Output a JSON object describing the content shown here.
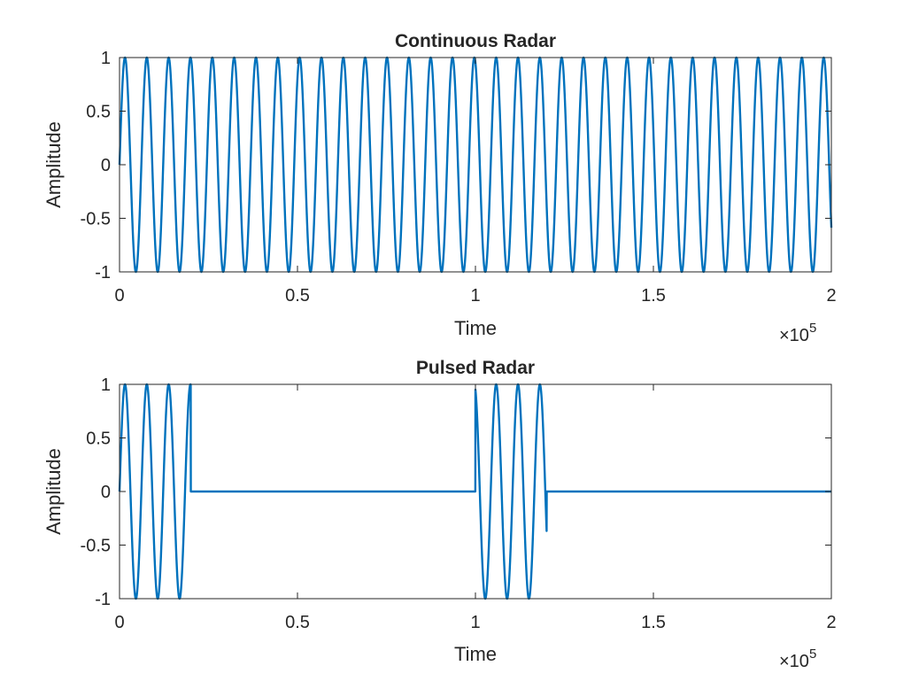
{
  "chart_data": [
    {
      "type": "line",
      "title": "Continuous Radar",
      "xlabel": "Time",
      "ylabel": "Amplitude",
      "x_exponent": {
        "base": "×10",
        "power": "5"
      },
      "xlim": [
        0,
        2
      ],
      "ylim": [
        -1,
        1
      ],
      "x_ticks": [
        "0",
        "0.5",
        "1",
        "1.5",
        "2"
      ],
      "y_ticks": [
        "1",
        "0.5",
        "0",
        "-0.5",
        "-1"
      ],
      "grid": false,
      "series": [
        {
          "color": "#0072BD",
          "waveform": "sine",
          "cycles_per_x_unit": 16.3,
          "segments": [
            [
              0,
              2
            ]
          ]
        }
      ]
    },
    {
      "type": "line",
      "title": "Pulsed Radar",
      "xlabel": "Time",
      "ylabel": "Amplitude",
      "x_exponent": {
        "base": "×10",
        "power": "5"
      },
      "xlim": [
        0,
        2
      ],
      "ylim": [
        -1,
        1
      ],
      "x_ticks": [
        "0",
        "0.5",
        "1",
        "1.5",
        "2"
      ],
      "y_ticks": [
        "1",
        "0.5",
        "0",
        "-0.5",
        "-1"
      ],
      "grid": false,
      "series": [
        {
          "color": "#0072BD",
          "waveform": "sine",
          "cycles_per_x_unit": 16.3,
          "segments": [
            [
              0,
              0.2
            ],
            [
              1,
              1.2
            ]
          ]
        }
      ]
    }
  ]
}
